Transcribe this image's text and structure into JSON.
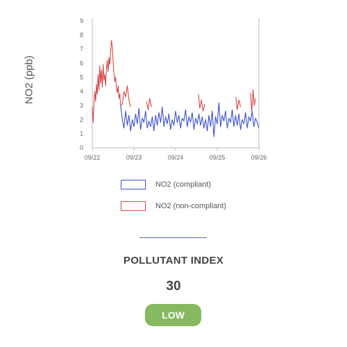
{
  "chart_data": {
    "type": "line",
    "title": "",
    "xlabel": "",
    "ylabel": "NO2 (ppb)",
    "ylim": [
      0,
      9
    ],
    "y_ticks": [
      "0",
      "1",
      "2",
      "3",
      "4",
      "5",
      "6",
      "7",
      "8",
      "9"
    ],
    "x_ticks": [
      "09/22",
      "09/23",
      "09/24",
      "09/25",
      "09/26"
    ],
    "grid": false,
    "legend_position": "bottom",
    "series": [
      {
        "name": "NO2 (compliant)",
        "color": "#3b4fd1",
        "points": [
          [
            0.68,
            3.0
          ],
          [
            0.72,
            2.0
          ],
          [
            0.76,
            1.4
          ],
          [
            0.8,
            2.6
          ],
          [
            0.84,
            1.6
          ],
          [
            0.88,
            2.3
          ],
          [
            0.92,
            1.2
          ],
          [
            0.96,
            2.0
          ],
          [
            1.0,
            1.5
          ],
          [
            1.04,
            2.4
          ],
          [
            1.08,
            1.7
          ],
          [
            1.12,
            2.8
          ],
          [
            1.16,
            1.3
          ],
          [
            1.2,
            2.1
          ],
          [
            1.24,
            1.8
          ],
          [
            1.28,
            2.6
          ],
          [
            1.32,
            1.4
          ],
          [
            1.36,
            1.9
          ],
          [
            1.4,
            1.5
          ],
          [
            1.44,
            2.2
          ],
          [
            1.48,
            1.2
          ],
          [
            1.52,
            2.3
          ],
          [
            1.56,
            1.6
          ],
          [
            1.6,
            2.5
          ],
          [
            1.64,
            1.8
          ],
          [
            1.68,
            2.9
          ],
          [
            1.72,
            1.5
          ],
          [
            1.76,
            2.2
          ],
          [
            1.8,
            1.7
          ],
          [
            1.84,
            2.4
          ],
          [
            1.88,
            1.3
          ],
          [
            1.92,
            2.0
          ],
          [
            1.96,
            1.6
          ],
          [
            2.0,
            2.6
          ],
          [
            2.04,
            1.8
          ],
          [
            2.08,
            2.3
          ],
          [
            2.12,
            1.4
          ],
          [
            2.16,
            2.1
          ],
          [
            2.2,
            1.9
          ],
          [
            2.24,
            2.7
          ],
          [
            2.28,
            1.5
          ],
          [
            2.32,
            2.2
          ],
          [
            2.36,
            1.8
          ],
          [
            2.4,
            2.5
          ],
          [
            2.44,
            1.3
          ],
          [
            2.48,
            2.1
          ],
          [
            2.52,
            1.7
          ],
          [
            2.56,
            2.4
          ],
          [
            2.6,
            1.6
          ],
          [
            2.64,
            2.2
          ],
          [
            2.68,
            1.4
          ],
          [
            2.72,
            2.0
          ],
          [
            2.76,
            1.2
          ],
          [
            2.8,
            2.3
          ],
          [
            2.84,
            1.5
          ],
          [
            2.88,
            2.6
          ],
          [
            2.92,
            0.8
          ],
          [
            2.96,
            2.2
          ],
          [
            3.0,
            1.7
          ],
          [
            3.04,
            3.2
          ],
          [
            3.08,
            1.5
          ],
          [
            3.12,
            2.3
          ],
          [
            3.16,
            1.9
          ],
          [
            3.2,
            2.6
          ],
          [
            3.24,
            1.4
          ],
          [
            3.28,
            2.1
          ],
          [
            3.32,
            1.8
          ],
          [
            3.36,
            2.7
          ],
          [
            3.4,
            1.5
          ],
          [
            3.44,
            2.3
          ],
          [
            3.48,
            1.6
          ],
          [
            3.52,
            2.4
          ],
          [
            3.56,
            1.3
          ],
          [
            3.6,
            2.0
          ],
          [
            3.64,
            1.7
          ],
          [
            3.68,
            2.5
          ],
          [
            3.72,
            1.4
          ],
          [
            3.76,
            2.2
          ],
          [
            3.8,
            1.9
          ],
          [
            3.84,
            2.6
          ],
          [
            3.88,
            1.5
          ],
          [
            3.92,
            2.1
          ],
          [
            3.96,
            1.8
          ],
          [
            4.0,
            1.4
          ]
        ]
      },
      {
        "name": "NO2 (non-compliant)",
        "color": "#d64545",
        "points": [
          [
            0.0,
            2.9
          ],
          [
            0.02,
            1.8
          ],
          [
            0.04,
            3.2
          ],
          [
            0.06,
            4.0
          ],
          [
            0.08,
            3.3
          ],
          [
            0.1,
            4.5
          ],
          [
            0.12,
            3.8
          ],
          [
            0.14,
            5.2
          ],
          [
            0.16,
            4.1
          ],
          [
            0.18,
            5.8
          ],
          [
            0.2,
            4.6
          ],
          [
            0.22,
            5.5
          ],
          [
            0.24,
            4.3
          ],
          [
            0.26,
            5.9
          ],
          [
            0.28,
            4.8
          ],
          [
            0.3,
            5.2
          ],
          [
            0.32,
            4.4
          ],
          [
            0.34,
            5.6
          ],
          [
            0.36,
            6.2
          ],
          [
            0.38,
            5.4
          ],
          [
            0.4,
            6.4
          ],
          [
            0.42,
            5.9
          ],
          [
            0.44,
            6.8
          ],
          [
            0.46,
            7.6
          ],
          [
            0.48,
            7.2
          ],
          [
            0.5,
            6.1
          ],
          [
            0.52,
            5.3
          ],
          [
            0.54,
            4.7
          ],
          [
            0.56,
            5.0
          ],
          [
            0.58,
            4.2
          ],
          [
            0.6,
            3.9
          ],
          [
            0.62,
            4.4
          ],
          [
            0.64,
            3.5
          ],
          [
            0.66,
            3.8
          ],
          [
            0.68,
            3.0
          ],
          [
            0.72,
            3.1
          ],
          [
            0.76,
            4.0
          ],
          [
            0.8,
            3.6
          ],
          [
            0.84,
            4.4
          ],
          [
            0.88,
            3.4
          ],
          [
            0.92,
            2.9
          ],
          [
            1.3,
            3.3
          ],
          [
            1.34,
            2.7
          ],
          [
            1.38,
            3.5
          ],
          [
            1.42,
            2.9
          ],
          [
            2.55,
            3.8
          ],
          [
            2.58,
            2.8
          ],
          [
            2.62,
            3.4
          ],
          [
            2.66,
            2.6
          ],
          [
            2.7,
            3.1
          ],
          [
            3.45,
            3.6
          ],
          [
            3.48,
            2.7
          ],
          [
            3.52,
            3.4
          ],
          [
            3.56,
            2.9
          ],
          [
            3.8,
            3.9
          ],
          [
            3.83,
            2.6
          ],
          [
            3.86,
            4.1
          ],
          [
            3.89,
            3.0
          ],
          [
            3.92,
            3.5
          ]
        ]
      }
    ]
  },
  "legend": {
    "compliant_label": "NO2 (compliant)",
    "noncompliant_label": "NO2 (non-compliant)"
  },
  "index": {
    "title": "POLLUTANT INDEX",
    "value": "30",
    "level": "LOW",
    "level_color": "#86b960"
  }
}
